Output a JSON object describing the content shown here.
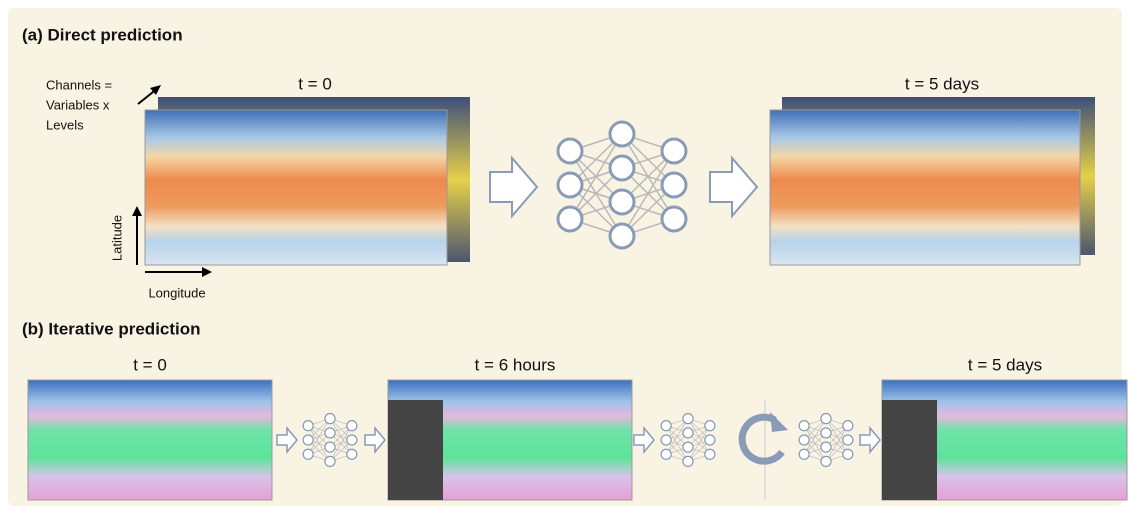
{
  "panel_a": {
    "title": "(a) Direct prediction",
    "channels_label": [
      "Channels =",
      "Variables x",
      "Levels"
    ],
    "input_label": "t = 0",
    "output_label": "t = 5 days",
    "y_axis_label": "Latitude",
    "x_axis_label": "Longitude"
  },
  "panel_b": {
    "title": "(b) Iterative prediction",
    "frames": [
      {
        "label": "t = 0"
      },
      {
        "label": "t = 6 hours"
      },
      {
        "label": "t = 5 days"
      }
    ]
  }
}
